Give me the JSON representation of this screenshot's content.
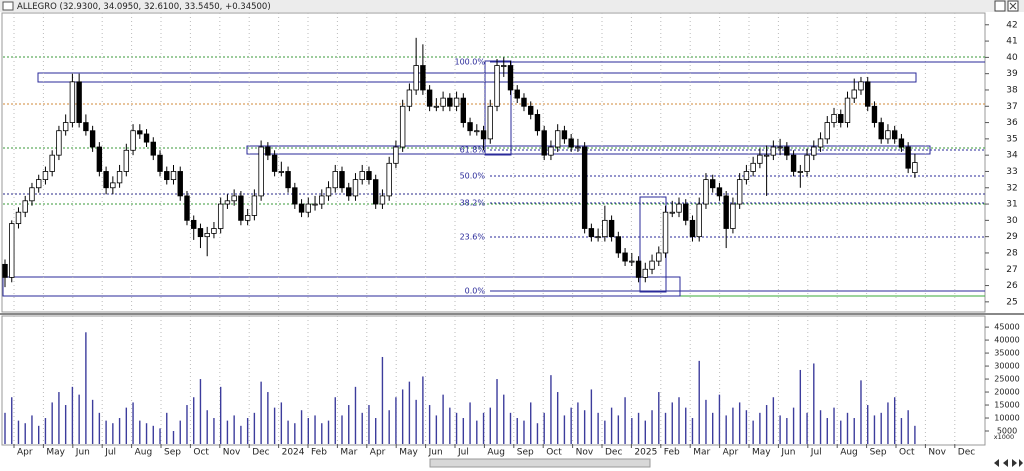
{
  "chart_data": {
    "type": "candlestick",
    "title": "ALLEGRO (32.9300, 34.0950, 32.6100, 33.5450, +0.34500)",
    "up_color": "#ffffff",
    "down_color": "#000000",
    "grid": true,
    "ylim": [
      24.5,
      42.6
    ],
    "yticks": [
      25,
      26,
      27,
      28,
      29,
      30,
      31,
      32,
      33,
      34,
      35,
      36,
      37,
      38,
      39,
      40,
      41,
      42
    ],
    "months": [
      "Apr",
      "May",
      "Jun",
      "Jul",
      "Aug",
      "Sep",
      "Oct",
      "Nov",
      "Dec",
      "2024",
      "Feb",
      "Mar",
      "Apr",
      "May",
      "Jun",
      "Jul",
      "Aug",
      "Sep",
      "Oct",
      "Nov",
      "Dec",
      "2025",
      "Feb",
      "Mar",
      "Apr",
      "May",
      "Jun",
      "Jul",
      "Aug",
      "Sep",
      "Oct",
      "Nov",
      "Dec"
    ],
    "fib_labels": [
      "100.0%",
      "61.8%",
      "50.0%",
      "38.2%",
      "23.6%",
      "0.0%"
    ],
    "ohlc": [
      [
        27.3,
        27.6,
        25.9,
        26.5
      ],
      [
        26.5,
        30.0,
        26.2,
        29.8
      ],
      [
        29.8,
        30.8,
        29.5,
        30.5
      ],
      [
        30.5,
        31.5,
        30.2,
        31.2
      ],
      [
        31.2,
        32.3,
        30.9,
        32.0
      ],
      [
        32.0,
        32.8,
        31.7,
        32.5
      ],
      [
        32.5,
        33.3,
        32.2,
        33.0
      ],
      [
        33.0,
        34.3,
        32.7,
        34.0
      ],
      [
        34.0,
        35.8,
        33.7,
        35.5
      ],
      [
        35.5,
        36.5,
        35.2,
        36.0
      ],
      [
        36.0,
        39.0,
        35.7,
        38.5
      ],
      [
        38.5,
        39.0,
        35.7,
        36.0
      ],
      [
        36.0,
        36.5,
        35.2,
        35.5
      ],
      [
        35.5,
        35.8,
        34.2,
        34.5
      ],
      [
        34.5,
        34.8,
        32.7,
        33.0
      ],
      [
        33.0,
        33.3,
        31.6,
        32.0
      ],
      [
        32.0,
        32.7,
        31.6,
        32.3
      ],
      [
        32.3,
        33.4,
        32.0,
        33.0
      ],
      [
        33.0,
        34.7,
        32.7,
        34.3
      ],
      [
        34.3,
        35.9,
        34.0,
        35.5
      ],
      [
        35.5,
        35.9,
        35.0,
        35.3
      ],
      [
        35.3,
        35.6,
        34.5,
        34.8
      ],
      [
        34.8,
        35.1,
        33.7,
        34.0
      ],
      [
        34.0,
        34.3,
        32.7,
        33.0
      ],
      [
        33.0,
        33.3,
        32.2,
        32.5
      ],
      [
        32.5,
        33.4,
        32.2,
        33.0
      ],
      [
        33.0,
        33.3,
        31.2,
        31.5
      ],
      [
        31.5,
        31.8,
        29.7,
        30.0
      ],
      [
        30.0,
        30.3,
        28.8,
        29.5
      ],
      [
        29.5,
        29.8,
        28.3,
        29.0
      ],
      [
        29.0,
        29.6,
        27.8,
        29.2
      ],
      [
        29.2,
        29.9,
        28.9,
        29.5
      ],
      [
        29.5,
        31.4,
        29.2,
        31.0
      ],
      [
        31.0,
        31.6,
        30.7,
        31.2
      ],
      [
        31.2,
        31.9,
        30.9,
        31.5
      ],
      [
        31.5,
        31.8,
        29.7,
        30.0
      ],
      [
        30.0,
        30.7,
        29.7,
        30.3
      ],
      [
        30.3,
        31.9,
        30.0,
        31.5
      ],
      [
        31.5,
        34.9,
        31.2,
        34.5
      ],
      [
        34.5,
        34.8,
        33.7,
        34.0
      ],
      [
        34.0,
        34.3,
        32.7,
        33.0
      ],
      [
        33.0,
        33.6,
        32.7,
        33.0
      ],
      [
        33.0,
        33.3,
        31.7,
        32.0
      ],
      [
        32.0,
        32.3,
        30.7,
        31.0
      ],
      [
        31.0,
        31.3,
        30.2,
        30.5
      ],
      [
        30.5,
        31.4,
        30.2,
        31.0
      ],
      [
        31.0,
        31.5,
        30.6,
        31.0
      ],
      [
        31.0,
        31.9,
        30.7,
        31.5
      ],
      [
        31.5,
        32.4,
        31.2,
        32.0
      ],
      [
        32.0,
        33.4,
        31.7,
        33.0
      ],
      [
        33.0,
        33.3,
        31.7,
        32.0
      ],
      [
        32.0,
        32.3,
        31.2,
        31.5
      ],
      [
        31.5,
        32.9,
        31.2,
        32.5
      ],
      [
        32.5,
        33.4,
        32.2,
        33.0
      ],
      [
        33.0,
        33.3,
        32.2,
        32.5
      ],
      [
        32.5,
        32.8,
        30.7,
        31.0
      ],
      [
        31.0,
        31.9,
        30.7,
        31.5
      ],
      [
        31.5,
        33.9,
        31.2,
        33.5
      ],
      [
        33.5,
        34.9,
        33.2,
        34.5
      ],
      [
        34.5,
        37.4,
        34.2,
        37.0
      ],
      [
        37.0,
        38.4,
        36.7,
        38.0
      ],
      [
        38.0,
        41.2,
        37.7,
        39.5
      ],
      [
        39.5,
        40.8,
        37.7,
        38.0
      ],
      [
        38.0,
        38.3,
        36.7,
        37.0
      ],
      [
        37.0,
        37.5,
        36.7,
        37.0
      ],
      [
        37.0,
        37.9,
        36.7,
        37.5
      ],
      [
        37.5,
        37.8,
        36.7,
        37.0
      ],
      [
        37.0,
        37.9,
        36.7,
        37.5
      ],
      [
        37.5,
        37.8,
        35.7,
        36.0
      ],
      [
        36.0,
        36.3,
        35.2,
        35.5
      ],
      [
        35.5,
        35.9,
        35.2,
        35.5
      ],
      [
        35.5,
        35.8,
        34.3,
        35.0
      ],
      [
        35.0,
        37.4,
        34.7,
        37.0
      ],
      [
        37.0,
        39.9,
        36.7,
        39.5
      ],
      [
        39.5,
        40.0,
        38.8,
        39.5
      ],
      [
        39.5,
        39.8,
        37.7,
        38.0
      ],
      [
        38.0,
        38.3,
        37.2,
        37.5
      ],
      [
        37.5,
        37.8,
        36.7,
        37.0
      ],
      [
        37.0,
        37.3,
        36.2,
        36.5
      ],
      [
        36.5,
        36.8,
        35.2,
        35.5
      ],
      [
        35.5,
        35.8,
        33.7,
        34.0
      ],
      [
        34.0,
        34.9,
        33.7,
        34.5
      ],
      [
        34.5,
        35.9,
        34.2,
        35.5
      ],
      [
        35.5,
        35.8,
        34.7,
        35.0
      ],
      [
        35.0,
        35.3,
        34.2,
        34.5
      ],
      [
        34.5,
        35.0,
        34.2,
        34.5
      ],
      [
        34.5,
        34.8,
        29.2,
        29.5
      ],
      [
        29.5,
        29.8,
        28.7,
        29.0
      ],
      [
        29.0,
        29.5,
        28.7,
        29.0
      ],
      [
        29.0,
        30.9,
        28.7,
        30.0
      ],
      [
        30.0,
        30.3,
        28.7,
        29.0
      ],
      [
        29.0,
        29.3,
        27.7,
        28.0
      ],
      [
        28.0,
        28.3,
        27.2,
        27.5
      ],
      [
        27.5,
        28.0,
        27.2,
        27.5
      ],
      [
        27.5,
        27.8,
        26.2,
        26.5
      ],
      [
        26.5,
        27.4,
        26.2,
        27.0
      ],
      [
        27.0,
        27.9,
        26.7,
        27.5
      ],
      [
        27.5,
        28.4,
        27.2,
        28.0
      ],
      [
        28.0,
        30.9,
        27.7,
        30.5
      ],
      [
        30.5,
        31.2,
        30.2,
        30.5
      ],
      [
        30.5,
        31.4,
        30.2,
        31.0
      ],
      [
        31.0,
        31.3,
        29.7,
        30.0
      ],
      [
        30.0,
        30.3,
        28.7,
        29.0
      ],
      [
        29.0,
        31.4,
        28.7,
        31.0
      ],
      [
        31.0,
        32.9,
        30.7,
        32.5
      ],
      [
        32.5,
        32.8,
        31.7,
        32.0
      ],
      [
        32.0,
        32.3,
        31.2,
        31.5
      ],
      [
        31.5,
        31.8,
        28.3,
        29.5
      ],
      [
        29.5,
        31.4,
        29.2,
        31.0
      ],
      [
        31.0,
        32.9,
        30.7,
        32.5
      ],
      [
        32.5,
        33.4,
        32.2,
        33.0
      ],
      [
        33.0,
        33.9,
        32.7,
        33.5
      ],
      [
        33.5,
        34.4,
        33.2,
        34.0
      ],
      [
        34.0,
        34.6,
        31.5,
        34.0
      ],
      [
        34.0,
        34.9,
        33.7,
        34.5
      ],
      [
        34.5,
        35.0,
        34.0,
        34.5
      ],
      [
        34.5,
        34.8,
        33.7,
        34.0
      ],
      [
        34.0,
        34.3,
        32.7,
        33.0
      ],
      [
        33.0,
        33.4,
        32.0,
        33.0
      ],
      [
        33.0,
        34.4,
        32.7,
        34.0
      ],
      [
        34.0,
        34.9,
        33.7,
        34.5
      ],
      [
        34.5,
        35.4,
        34.2,
        35.0
      ],
      [
        35.0,
        36.4,
        34.7,
        36.0
      ],
      [
        36.0,
        36.9,
        35.7,
        36.5
      ],
      [
        36.5,
        36.8,
        35.7,
        36.0
      ],
      [
        36.0,
        37.9,
        35.7,
        37.5
      ],
      [
        37.5,
        38.7,
        37.2,
        38.0
      ],
      [
        38.0,
        38.8,
        37.7,
        38.5
      ],
      [
        38.5,
        38.8,
        36.7,
        37.0
      ],
      [
        37.0,
        37.3,
        35.7,
        36.0
      ],
      [
        36.0,
        36.3,
        34.7,
        35.0
      ],
      [
        35.0,
        35.9,
        34.7,
        35.5
      ],
      [
        35.5,
        35.8,
        34.7,
        35.0
      ],
      [
        35.0,
        35.3,
        34.2,
        34.5
      ],
      [
        34.5,
        34.8,
        32.9,
        33.2
      ],
      [
        32.93,
        34.095,
        32.61,
        33.545
      ]
    ],
    "volume": {
      "color": "#3c3c9c",
      "unit_label": "x1000",
      "ylim": [
        0,
        48500
      ],
      "yticks": [
        5000,
        10000,
        15000,
        20000,
        25000,
        30000,
        35000,
        40000,
        45000
      ],
      "values": [
        12000,
        18000,
        9000,
        8000,
        11000,
        7000,
        10000,
        16000,
        20000,
        15000,
        22000,
        19000,
        43000,
        17000,
        12000,
        9000,
        8000,
        10000,
        14000,
        16000,
        9000,
        8000,
        7000,
        6000,
        12000,
        5000,
        9000,
        15000,
        18000,
        25000,
        13000,
        10000,
        22000,
        9000,
        11000,
        7000,
        10000,
        12000,
        24000,
        20000,
        14000,
        16000,
        9000,
        8000,
        13000,
        10000,
        11000,
        8000,
        9000,
        18000,
        11000,
        15000,
        22000,
        12000,
        15000,
        10000,
        33500,
        13000,
        18000,
        21000,
        24000,
        17000,
        26000,
        15000,
        11000,
        19000,
        14000,
        12000,
        10000,
        16000,
        9000,
        12000,
        14000,
        25000,
        19000,
        12000,
        10000,
        9000,
        16000,
        8000,
        12000,
        26500,
        20000,
        11000,
        14000,
        16000,
        13000,
        21000,
        12000,
        9000,
        14000,
        11000,
        18000,
        10000,
        12000,
        9000,
        13000,
        20000,
        12000,
        16000,
        18000,
        14000,
        10000,
        32000,
        17000,
        12000,
        19000,
        11000,
        14000,
        16000,
        13000,
        9000,
        12000,
        15000,
        18000,
        11000,
        10000,
        14000,
        28500,
        12000,
        31000,
        13000,
        10000,
        14000,
        9000,
        12000,
        10000,
        24500,
        15000,
        11000,
        12000,
        16000,
        18000,
        10000,
        13000,
        7000
      ]
    }
  }
}
